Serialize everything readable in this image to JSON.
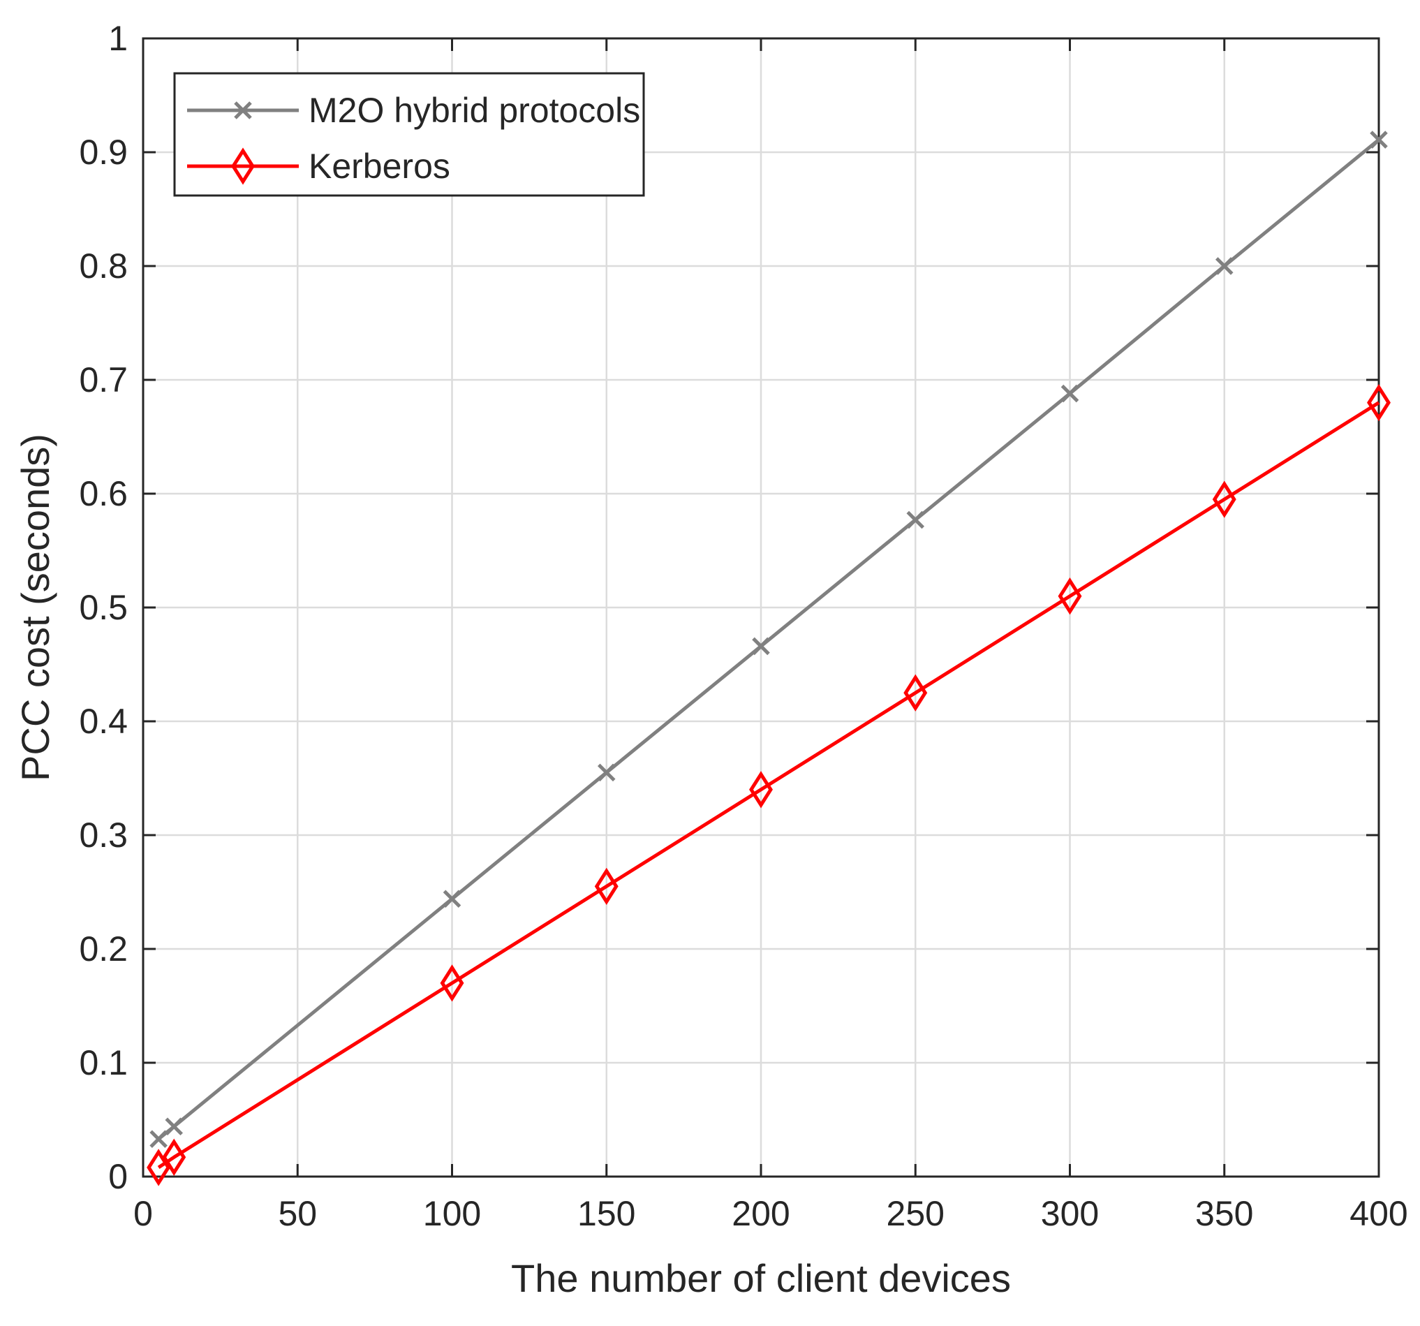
{
  "chart_data": {
    "type": "line",
    "title": "",
    "xlabel": "The number of client devices",
    "ylabel": "PCC cost (seconds)",
    "xlim": [
      0,
      400
    ],
    "ylim": [
      0,
      1
    ],
    "xticks": [
      0,
      50,
      100,
      150,
      200,
      250,
      300,
      350,
      400
    ],
    "yticks": [
      0,
      0.1,
      0.2,
      0.3,
      0.4,
      0.5,
      0.6,
      0.7,
      0.8,
      0.9,
      1
    ],
    "xtick_labels": [
      "0",
      "50",
      "100",
      "150",
      "200",
      "250",
      "300",
      "350",
      "400"
    ],
    "ytick_labels": [
      "0",
      "0.1",
      "0.2",
      "0.3",
      "0.4",
      "0.5",
      "0.6",
      "0.7",
      "0.8",
      "0.9",
      "1"
    ],
    "grid": true,
    "legend_position": "top-left",
    "x": [
      5,
      10,
      100,
      150,
      200,
      250,
      300,
      350,
      400
    ],
    "series": [
      {
        "name": "M2O hybrid protocols",
        "color": "#808080",
        "marker": "x",
        "values": [
          0.033,
          0.044,
          0.244,
          0.355,
          0.466,
          0.577,
          0.688,
          0.8,
          0.911
        ]
      },
      {
        "name": "Kerberos",
        "color": "#ff0000",
        "marker": "diamond",
        "values": [
          0.008,
          0.017,
          0.17,
          0.255,
          0.34,
          0.425,
          0.51,
          0.595,
          0.68
        ]
      }
    ]
  }
}
